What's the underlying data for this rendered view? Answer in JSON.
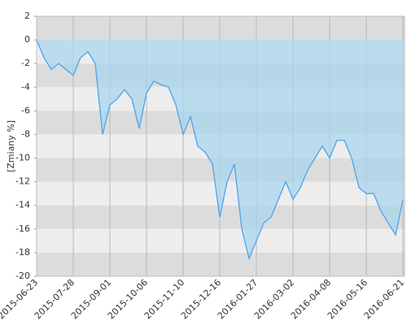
{
  "chart_data": {
    "type": "area",
    "y_label": "[Zmiany %]",
    "categories": [
      "2015-06-23",
      null,
      null,
      null,
      null,
      "2015-07-28",
      null,
      null,
      null,
      null,
      "2015-09-01",
      null,
      null,
      null,
      null,
      "2015-10-06",
      null,
      null,
      null,
      null,
      "2015-11-10",
      null,
      null,
      null,
      null,
      "2015-12-16",
      null,
      null,
      null,
      null,
      "2016-01-27",
      null,
      null,
      null,
      null,
      "2016-03-02",
      null,
      null,
      null,
      null,
      "2016-04-08",
      null,
      null,
      null,
      null,
      "2016-05-16",
      null,
      null,
      null,
      null,
      "2016-06-21"
    ],
    "values": [
      0,
      -1.5,
      -2.5,
      -2.0,
      -2.5,
      -3.0,
      -1.5,
      -1.0,
      -2.0,
      -8.0,
      -5.5,
      -5.0,
      -4.2,
      -5.0,
      -7.5,
      -4.5,
      -3.5,
      -3.8,
      -4.0,
      -5.5,
      -8.0,
      -6.5,
      -9.0,
      -9.5,
      -10.5,
      -15.0,
      -12.0,
      -10.5,
      -16.0,
      -18.5,
      -17.0,
      -15.5,
      -15.0,
      -13.5,
      -12.0,
      -13.5,
      -12.5,
      -11.0,
      -10.0,
      -9.0,
      -10.0,
      -8.5,
      -8.5,
      -10.0,
      -12.5,
      -13.0,
      -13.0,
      -14.5,
      -15.5,
      -16.5,
      -13.5
    ],
    "color": "#4aa3f0",
    "fill": "#a9d6ec",
    "ylim": [
      -20,
      2
    ],
    "yticks": [
      -20,
      -18,
      -16,
      -14,
      -12,
      -10,
      -8,
      -6,
      -4,
      -2,
      0,
      2
    ],
    "grid": true
  }
}
